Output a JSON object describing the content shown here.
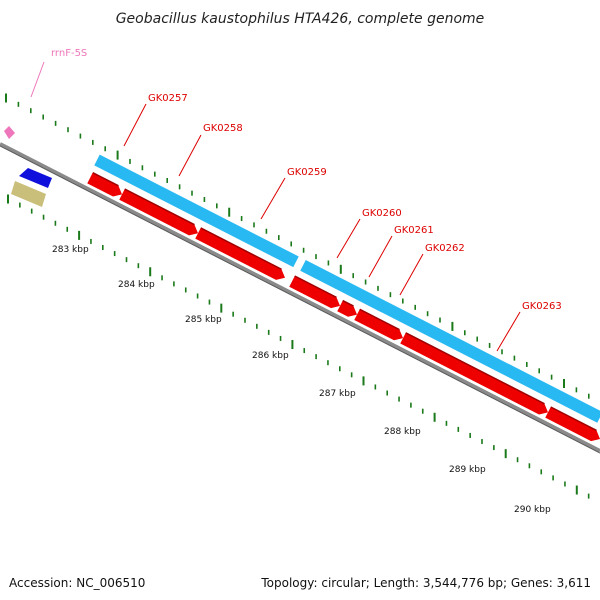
{
  "header": {
    "title": "Geobacillus kaustophilus HTA426, complete genome"
  },
  "footer": {
    "accession": "Accession: NC_006510",
    "topology": "Topology: circular; Length: 3,544,776 bp; Genes: 3,611"
  },
  "colors": {
    "forward_cds": "#29b9f2",
    "reverse_cds": "#ee0000",
    "backbone": "#8a8a8a",
    "tick": "#1a7a1a",
    "gene_label": "#dd0000",
    "rrna": "#ee77bb",
    "blue_feature": "#1010dd",
    "khaki_feature": "#c9bf7a"
  },
  "genes": [
    {
      "name": "GK0257"
    },
    {
      "name": "GK0258"
    },
    {
      "name": "GK0259"
    },
    {
      "name": "GK0260"
    },
    {
      "name": "GK0261"
    },
    {
      "name": "GK0262"
    },
    {
      "name": "GK0263"
    }
  ],
  "rrna": {
    "name": "rrnF-5S"
  },
  "kbp_labels": [
    "283 kbp",
    "284 kbp",
    "285 kbp",
    "286 kbp",
    "287 kbp",
    "288 kbp",
    "289 kbp",
    "290 kbp"
  ]
}
